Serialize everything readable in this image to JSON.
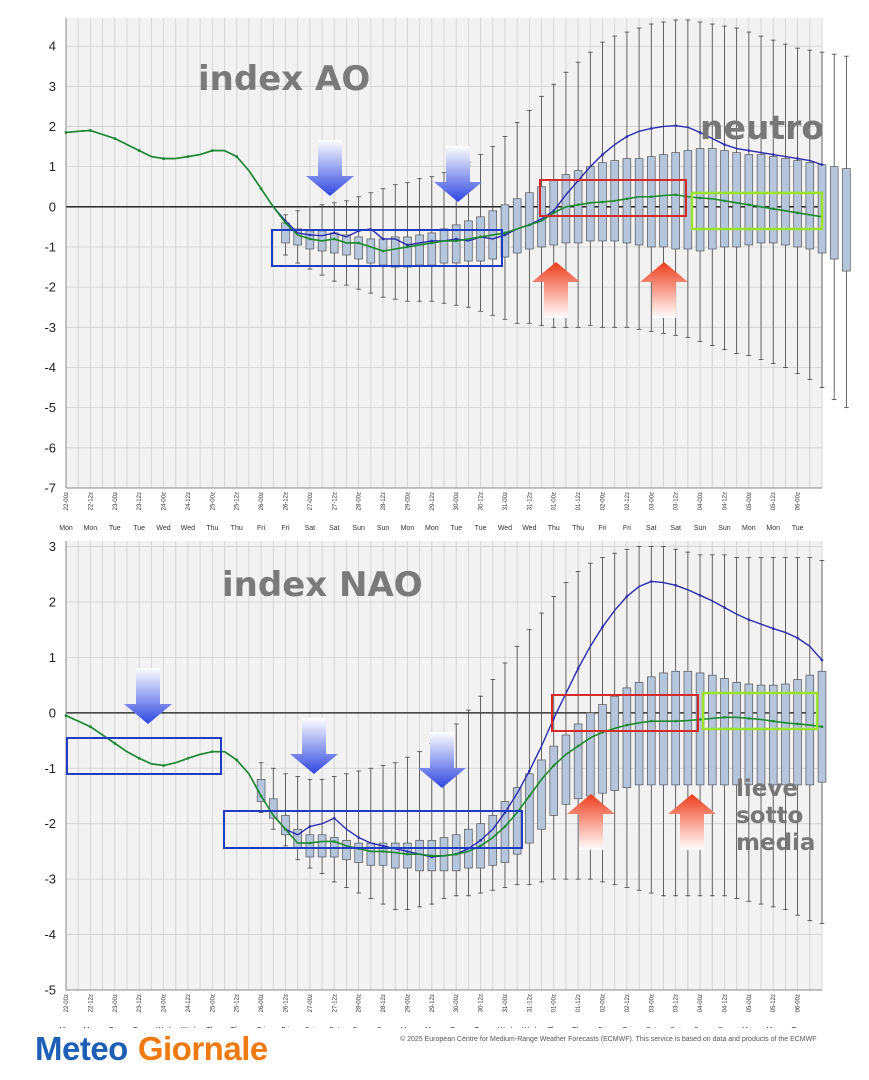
{
  "chart_data": [
    {
      "type": "box",
      "id": "ao",
      "title": "index AO",
      "annotation": "neutro",
      "ylim": [
        -7,
        4.7
      ],
      "yticks": [
        4,
        3,
        2,
        1,
        0,
        -1,
        -2,
        -3,
        -4,
        -5,
        -6,
        -7
      ],
      "x_labels": [
        "22-00z",
        "22-12z",
        "23-00z",
        "23-12z",
        "24-00z",
        "24-12z",
        "25-00z",
        "25-12z",
        "26-00z",
        "26-12z",
        "27-00z",
        "27-12z",
        "28-00z",
        "28-12z",
        "29-00z",
        "29-12z",
        "30-00z",
        "30-12z",
        "31-00z",
        "31-12z",
        "01-00z",
        "01-12z",
        "02-00z",
        "02-12z",
        "03-00z",
        "03-12z",
        "04-00z",
        "04-12z",
        "05-00z",
        "05-12z",
        "06-00z"
      ],
      "day_labels": [
        "Mon",
        "Mon",
        "Tue",
        "Tue",
        "Wed",
        "Wed",
        "Thu",
        "Thu",
        "Fri",
        "Fri",
        "Sat",
        "Sat",
        "Sun",
        "Sun",
        "Mon",
        "Mon",
        "Tue",
        "Tue",
        "Wed",
        "Wed",
        "Thu",
        "Thu",
        "Fri",
        "Fri",
        "Sat",
        "Sat",
        "Sun",
        "Sun",
        "Mon",
        "Mon",
        "Tue"
      ],
      "x": [
        0,
        1,
        2,
        3,
        4,
        5,
        6,
        7,
        8,
        9,
        10,
        11,
        12,
        13,
        14,
        15,
        16,
        17,
        18,
        19,
        20,
        21,
        22,
        23,
        24,
        25,
        26,
        27,
        28,
        29,
        30,
        31,
        32,
        33,
        34,
        35,
        36,
        37,
        38,
        39,
        40,
        41,
        42,
        43,
        44,
        45,
        46,
        47,
        48,
        49,
        50,
        51,
        52,
        53,
        54,
        55,
        56,
        57,
        58,
        59,
        60,
        61,
        62
      ],
      "series": [
        {
          "name": "control",
          "color": "#2a2ab0",
          "values": [
            1.85,
            1.88,
            1.9,
            1.8,
            1.7,
            1.55,
            1.4,
            1.25,
            1.2,
            1.2,
            1.25,
            1.3,
            1.4,
            1.4,
            1.25,
            0.9,
            0.45,
            0.0,
            -0.35,
            -0.65,
            -0.7,
            -0.72,
            -0.65,
            -0.75,
            -0.6,
            -0.55,
            -0.8,
            -0.8,
            -0.95,
            -0.9,
            -0.85,
            -0.85,
            -0.8,
            -0.85,
            -0.75,
            -0.8,
            -0.7,
            -0.55,
            -0.45,
            -0.3,
            -0.1,
            0.3,
            0.65,
            1.0,
            1.3,
            1.55,
            1.75,
            1.88,
            1.95,
            2.0,
            2.02,
            1.98,
            1.85,
            1.7,
            1.55,
            1.45,
            1.4,
            1.35,
            1.3,
            1.25,
            1.2,
            1.15,
            1.05
          ]
        },
        {
          "name": "mean",
          "color": "#1a8a2a",
          "values": [
            1.85,
            1.88,
            1.9,
            1.8,
            1.7,
            1.55,
            1.4,
            1.25,
            1.2,
            1.2,
            1.25,
            1.3,
            1.4,
            1.4,
            1.25,
            0.9,
            0.45,
            0.0,
            -0.4,
            -0.7,
            -0.8,
            -0.85,
            -0.8,
            -0.9,
            -0.9,
            -1.0,
            -1.1,
            -1.05,
            -1.0,
            -0.95,
            -0.9,
            -0.85,
            -0.85,
            -0.8,
            -0.75,
            -0.7,
            -0.65,
            -0.55,
            -0.45,
            -0.35,
            -0.15,
            0.0,
            0.05,
            0.1,
            0.12,
            0.15,
            0.2,
            0.25,
            0.25,
            0.28,
            0.3,
            0.25,
            0.22,
            0.2,
            0.15,
            0.1,
            0.05,
            0.0,
            -0.05,
            -0.1,
            -0.15,
            -0.2,
            -0.25
          ]
        }
      ],
      "boxes": {
        "start_index": 18,
        "q1": [
          -0.9,
          -0.95,
          -1.05,
          -1.1,
          -1.15,
          -1.2,
          -1.3,
          -1.4,
          -1.45,
          -1.5,
          -1.5,
          -1.45,
          -1.45,
          -1.4,
          -1.4,
          -1.35,
          -1.35,
          -1.3,
          -1.25,
          -1.15,
          -1.05,
          -1.0,
          -0.95,
          -0.9,
          -0.9,
          -0.85,
          -0.85,
          -0.85,
          -0.9,
          -0.95,
          -1.0,
          -1.0,
          -1.05,
          -1.05,
          -1.1,
          -1.05,
          -1.0,
          -1.0,
          -0.95,
          -0.9,
          -0.9,
          -0.95,
          -1.0,
          -1.05,
          -1.15,
          -1.3,
          -1.6
        ],
        "q3": [
          -0.4,
          -0.55,
          -0.6,
          -0.6,
          -0.65,
          -0.7,
          -0.75,
          -0.8,
          -0.8,
          -0.75,
          -0.75,
          -0.7,
          -0.65,
          -0.55,
          -0.45,
          -0.35,
          -0.25,
          -0.1,
          0.05,
          0.2,
          0.35,
          0.5,
          0.65,
          0.8,
          0.9,
          1.0,
          1.1,
          1.15,
          1.2,
          1.2,
          1.25,
          1.3,
          1.35,
          1.4,
          1.45,
          1.45,
          1.4,
          1.35,
          1.3,
          1.3,
          1.25,
          1.2,
          1.15,
          1.1,
          1.05,
          1.0,
          0.95
        ],
        "lo": [
          -1.2,
          -1.4,
          -1.55,
          -1.7,
          -1.85,
          -1.95,
          -2.05,
          -2.15,
          -2.25,
          -2.3,
          -2.35,
          -2.35,
          -2.35,
          -2.4,
          -2.45,
          -2.5,
          -2.6,
          -2.7,
          -2.8,
          -2.9,
          -2.9,
          -2.95,
          -3.0,
          -3.0,
          -3.0,
          -2.95,
          -3.0,
          -3.0,
          -3.0,
          -3.05,
          -3.1,
          -3.15,
          -3.2,
          -3.25,
          -3.35,
          -3.45,
          -3.55,
          -3.65,
          -3.7,
          -3.8,
          -3.9,
          -4.0,
          -4.15,
          -4.3,
          -4.5,
          -4.8,
          -5.0
        ],
        "hi": [
          -0.2,
          -0.1,
          0.0,
          0.05,
          0.1,
          0.15,
          0.25,
          0.35,
          0.45,
          0.55,
          0.6,
          0.7,
          0.75,
          0.85,
          0.95,
          1.1,
          1.3,
          1.5,
          1.75,
          2.1,
          2.4,
          2.75,
          3.05,
          3.35,
          3.6,
          3.85,
          4.1,
          4.25,
          4.35,
          4.45,
          4.55,
          4.6,
          4.65,
          4.65,
          4.6,
          4.55,
          4.5,
          4.45,
          4.35,
          4.25,
          4.15,
          4.05,
          3.95,
          3.9,
          3.85,
          3.8,
          3.75
        ]
      }
    },
    {
      "type": "box",
      "id": "nao",
      "title": "index NAO",
      "annotation_lines": [
        "lieve",
        "sotto",
        "media"
      ],
      "ylim": [
        -5,
        3.1
      ],
      "yticks": [
        3,
        2,
        1,
        0,
        -1,
        -2,
        -3,
        -4,
        -5
      ],
      "x_labels": [
        "22-00z",
        "22-12z",
        "23-00z",
        "23-12z",
        "24-00z",
        "24-12z",
        "25-00z",
        "25-12z",
        "26-00z",
        "26-12z",
        "27-00z",
        "27-12z",
        "28-00z",
        "28-12z",
        "29-00z",
        "29-12z",
        "30-00z",
        "30-12z",
        "31-00z",
        "31-12z",
        "01-00z",
        "01-12z",
        "02-00z",
        "02-12z",
        "03-00z",
        "03-12z",
        "04-00z",
        "04-12z",
        "05-00z",
        "05-12z",
        "06-00z"
      ],
      "day_labels": [
        "Mon",
        "Mon",
        "Tue",
        "Tue",
        "Wed",
        "Wed",
        "Thu",
        "Thu",
        "Fri",
        "Fri",
        "Sat",
        "Sat",
        "Sun",
        "Sun",
        "Mon",
        "Mon",
        "Tue",
        "Tue",
        "Wed",
        "Wed",
        "Thu",
        "Thu",
        "Fri",
        "Fri",
        "Sat",
        "Sat",
        "Sun",
        "Sun",
        "Mon",
        "Mon",
        "Tue"
      ],
      "x": [
        0,
        1,
        2,
        3,
        4,
        5,
        6,
        7,
        8,
        9,
        10,
        11,
        12,
        13,
        14,
        15,
        16,
        17,
        18,
        19,
        20,
        21,
        22,
        23,
        24,
        25,
        26,
        27,
        28,
        29,
        30,
        31,
        32,
        33,
        34,
        35,
        36,
        37,
        38,
        39,
        40,
        41,
        42,
        43,
        44,
        45,
        46,
        47,
        48,
        49,
        50,
        51,
        52,
        53,
        54,
        55,
        56,
        57,
        58,
        59,
        60,
        61,
        62
      ],
      "series": [
        {
          "name": "control",
          "color": "#2a2ab0",
          "values": [
            -0.05,
            -0.15,
            -0.25,
            -0.4,
            -0.55,
            -0.7,
            -0.82,
            -0.92,
            -0.95,
            -0.9,
            -0.82,
            -0.75,
            -0.7,
            -0.7,
            -0.85,
            -1.1,
            -1.5,
            -1.85,
            -2.1,
            -2.2,
            -2.05,
            -2.0,
            -1.9,
            -2.1,
            -2.25,
            -2.35,
            -2.4,
            -2.45,
            -2.5,
            -2.55,
            -2.6,
            -2.58,
            -2.55,
            -2.45,
            -2.3,
            -2.1,
            -1.8,
            -1.45,
            -1.05,
            -0.6,
            -0.1,
            0.35,
            0.8,
            1.2,
            1.55,
            1.85,
            2.1,
            2.28,
            2.37,
            2.35,
            2.3,
            2.22,
            2.12,
            2.02,
            1.9,
            1.78,
            1.68,
            1.6,
            1.52,
            1.45,
            1.35,
            1.2,
            0.95
          ]
        },
        {
          "name": "mean",
          "color": "#1a8a2a",
          "values": [
            -0.05,
            -0.15,
            -0.25,
            -0.4,
            -0.55,
            -0.7,
            -0.82,
            -0.92,
            -0.95,
            -0.9,
            -0.82,
            -0.75,
            -0.7,
            -0.7,
            -0.85,
            -1.1,
            -1.5,
            -1.85,
            -2.1,
            -2.35,
            -2.35,
            -2.32,
            -2.32,
            -2.4,
            -2.45,
            -2.5,
            -2.5,
            -2.52,
            -2.55,
            -2.55,
            -2.58,
            -2.58,
            -2.55,
            -2.5,
            -2.4,
            -2.25,
            -2.05,
            -1.8,
            -1.5,
            -1.2,
            -0.95,
            -0.75,
            -0.6,
            -0.45,
            -0.35,
            -0.28,
            -0.22,
            -0.18,
            -0.15,
            -0.15,
            -0.15,
            -0.14,
            -0.12,
            -0.1,
            -0.08,
            -0.08,
            -0.1,
            -0.12,
            -0.15,
            -0.18,
            -0.2,
            -0.22,
            -0.25
          ]
        }
      ],
      "boxes": {
        "start_index": 16,
        "q1": [
          -1.6,
          -1.9,
          -2.2,
          -2.45,
          -2.6,
          -2.6,
          -2.6,
          -2.65,
          -2.7,
          -2.75,
          -2.75,
          -2.8,
          -2.8,
          -2.85,
          -2.85,
          -2.85,
          -2.85,
          -2.8,
          -2.8,
          -2.75,
          -2.7,
          -2.55,
          -2.35,
          -2.1,
          -1.85,
          -1.65,
          -1.55,
          -1.5,
          -1.45,
          -1.4,
          -1.35,
          -1.3,
          -1.3,
          -1.3,
          -1.3,
          -1.3,
          -1.3,
          -1.3,
          -1.3,
          -1.3,
          -1.3,
          -1.3,
          -1.3,
          -1.3,
          -1.3,
          -1.3,
          -1.25
        ],
        "q3": [
          -1.2,
          -1.55,
          -1.85,
          -2.1,
          -2.2,
          -2.2,
          -2.25,
          -2.3,
          -2.35,
          -2.35,
          -2.35,
          -2.35,
          -2.35,
          -2.3,
          -2.3,
          -2.25,
          -2.2,
          -2.1,
          -2.0,
          -1.85,
          -1.6,
          -1.35,
          -1.1,
          -0.85,
          -0.6,
          -0.4,
          -0.2,
          0.0,
          0.15,
          0.3,
          0.45,
          0.55,
          0.65,
          0.72,
          0.75,
          0.75,
          0.72,
          0.68,
          0.62,
          0.55,
          0.52,
          0.5,
          0.5,
          0.52,
          0.6,
          0.68,
          0.75
        ],
        "lo": [
          -1.8,
          -2.1,
          -2.4,
          -2.65,
          -2.8,
          -2.9,
          -3.05,
          -3.15,
          -3.25,
          -3.35,
          -3.45,
          -3.55,
          -3.55,
          -3.5,
          -3.45,
          -3.35,
          -3.3,
          -3.3,
          -3.25,
          -3.2,
          -3.15,
          -3.1,
          -3.1,
          -3.05,
          -3.0,
          -3.0,
          -3.0,
          -3.0,
          -3.05,
          -3.1,
          -3.15,
          -3.2,
          -3.25,
          -3.3,
          -3.3,
          -3.3,
          -3.3,
          -3.3,
          -3.3,
          -3.35,
          -3.4,
          -3.45,
          -3.5,
          -3.55,
          -3.65,
          -3.75,
          -3.8
        ],
        "hi": [
          -0.9,
          -1.0,
          -1.1,
          -1.15,
          -1.2,
          -1.2,
          -1.15,
          -1.1,
          -1.05,
          -1.0,
          -0.95,
          -0.9,
          -0.8,
          -0.7,
          -0.55,
          -0.4,
          -0.2,
          0.05,
          0.3,
          0.6,
          0.9,
          1.2,
          1.5,
          1.8,
          2.1,
          2.35,
          2.55,
          2.7,
          2.8,
          2.88,
          2.95,
          3.0,
          3.0,
          3.0,
          2.95,
          2.9,
          2.85,
          2.85,
          2.85,
          2.8,
          2.8,
          2.8,
          2.8,
          2.8,
          2.8,
          2.8,
          2.75
        ]
      }
    }
  ],
  "logo": {
    "part1": "Meteo",
    "part2": "Giornale"
  },
  "credit": "© 2025 European Centre for Medium-Range Weather Forecasts (ECMWF). This service is based on data and products of the ECMWF"
}
